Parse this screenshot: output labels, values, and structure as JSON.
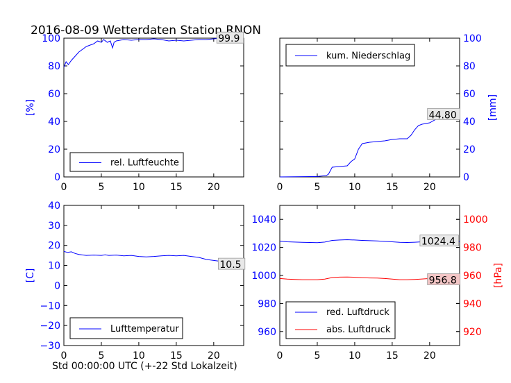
{
  "figure": {
    "title": "2016-08-09 Wetterdaten Station RNON",
    "xlabel": "Std 00:00:00 UTC (+-22 Std Lokalzeit)"
  },
  "colors": {
    "primary": "#0000ff",
    "secondary": "#ff0000",
    "axis": "#000000"
  },
  "chart_data": [
    {
      "type": "line",
      "ylabel": "[%]",
      "xlim": [
        0,
        24
      ],
      "ylim": [
        0,
        100
      ],
      "xticks": [
        0,
        5,
        10,
        15,
        20
      ],
      "yticks": [
        0,
        20,
        40,
        60,
        80,
        100
      ],
      "legend": "lower-left",
      "series": [
        {
          "name": "rel. Luftfeuchte",
          "color": "#0000ff",
          "x": [
            0,
            0.3,
            0.6,
            1,
            1.5,
            2,
            2.5,
            3,
            3.5,
            4,
            4.5,
            5,
            5.3,
            5.8,
            6.2,
            6.5,
            6.7,
            7,
            7.5,
            8,
            9,
            10,
            11,
            12,
            13,
            14,
            15,
            16,
            17,
            18,
            19,
            20,
            21,
            22,
            23,
            24
          ],
          "y": [
            79,
            83,
            81,
            84,
            87,
            90,
            92,
            94,
            95,
            96,
            98,
            97,
            99,
            97,
            98,
            93,
            97,
            98,
            98.5,
            99,
            98.5,
            99,
            99,
            99.5,
            99,
            98,
            98.5,
            98,
            98.5,
            99,
            99,
            99.5,
            100,
            99.5,
            99.9,
            99.9
          ]
        }
      ],
      "annotation": {
        "text": "99.9",
        "x": 20.5,
        "y": 99.9
      }
    },
    {
      "type": "line",
      "ylabel": "[mm]",
      "xlim": [
        0,
        24
      ],
      "ylim": [
        0,
        100
      ],
      "xticks": [
        0,
        5,
        10,
        15,
        20
      ],
      "yticks": [
        0,
        20,
        40,
        60,
        80,
        100
      ],
      "legend": "top-left",
      "series": [
        {
          "name": "kum. Niederschlag",
          "color": "#0000ff",
          "x": [
            0,
            5,
            6.2,
            6.5,
            7,
            8,
            9,
            9.5,
            10,
            10.5,
            11,
            12,
            13,
            14,
            15,
            16,
            17,
            17.5,
            18,
            18.5,
            19,
            20,
            21,
            22,
            23,
            24
          ],
          "y": [
            0,
            0.3,
            1,
            2,
            7,
            7.5,
            8,
            11,
            13,
            20,
            24,
            25,
            25.5,
            26,
            27,
            27.5,
            27.5,
            30,
            34,
            37,
            38,
            39,
            42,
            44,
            44.8,
            44.8
          ]
        }
      ],
      "annotation": {
        "text": "44.80",
        "x": 19.8,
        "y": 44.8
      }
    },
    {
      "type": "line",
      "ylabel": "[C]",
      "xlim": [
        0,
        24
      ],
      "ylim": [
        -30,
        40
      ],
      "xticks": [
        0,
        5,
        10,
        15,
        20
      ],
      "yticks": [
        -30,
        -20,
        -10,
        0,
        10,
        20,
        30,
        40
      ],
      "legend": "lower-left",
      "series": [
        {
          "name": "Lufttemperatur",
          "color": "#0000ff",
          "x": [
            0,
            0.5,
            1,
            1.5,
            2,
            3,
            4,
            5,
            5.5,
            6,
            7,
            8,
            9,
            10,
            11,
            12,
            13,
            14,
            15,
            16,
            17,
            18,
            19,
            20,
            21,
            22,
            23,
            24
          ],
          "y": [
            17,
            16.5,
            16.8,
            16,
            15.5,
            15,
            15.2,
            15,
            15.3,
            15,
            15.2,
            14.8,
            15,
            14.5,
            14.3,
            14.5,
            14.8,
            15,
            14.8,
            15,
            14.5,
            14,
            13,
            12.5,
            12,
            11.5,
            10.8,
            10.5
          ]
        }
      ],
      "annotation": {
        "text": "10.5",
        "x": 20.7,
        "y": 10.5
      }
    },
    {
      "type": "line",
      "ylabel": "[hPa]",
      "xlim": [
        0,
        24
      ],
      "ylim_left": [
        950,
        1050
      ],
      "ylim_right": [
        910,
        1010
      ],
      "xticks": [
        0,
        5,
        10,
        15,
        20
      ],
      "yticks_left": [
        960,
        980,
        1000,
        1020,
        1040
      ],
      "yticks_right": [
        920,
        940,
        960,
        980,
        1000
      ],
      "legend": "lower-left",
      "series": [
        {
          "name": "red. Luftdruck",
          "color": "#0000ff",
          "axis": "left",
          "x": [
            0,
            1,
            2,
            3,
            4,
            5,
            6,
            7,
            8,
            9,
            10,
            11,
            12,
            13,
            14,
            15,
            16,
            17,
            18,
            19,
            20,
            21,
            22,
            23,
            24
          ],
          "y": [
            1024.5,
            1024,
            1023.8,
            1023.6,
            1023.5,
            1023.4,
            1023.8,
            1025,
            1025.3,
            1025.5,
            1025.3,
            1025,
            1024.8,
            1024.6,
            1024.3,
            1024,
            1023.6,
            1023.5,
            1023.7,
            1024,
            1024.2,
            1024.4,
            1024.4,
            1024.4,
            1024.4
          ]
        },
        {
          "name": "abs. Luftdruck",
          "color": "#ff0000",
          "axis": "right",
          "x": [
            0,
            1,
            2,
            3,
            4,
            5,
            6,
            7,
            8,
            9,
            10,
            11,
            12,
            13,
            14,
            15,
            16,
            17,
            18,
            19,
            20,
            21,
            22,
            23,
            24
          ],
          "y": [
            957.8,
            957.4,
            957.2,
            957,
            957,
            957,
            957.4,
            958.5,
            958.8,
            958.9,
            958.7,
            958.4,
            958.2,
            958.1,
            957.8,
            957.4,
            957,
            957,
            957.2,
            957.5,
            957.8,
            957.6,
            957,
            956.8,
            956.8
          ]
        }
      ],
      "annotations": [
        {
          "text": "1024.4",
          "x": 18.8,
          "y": 1024.4,
          "axis": "left"
        },
        {
          "text": "956.8",
          "x": 19.8,
          "y": 956.8,
          "axis": "right"
        }
      ]
    }
  ]
}
